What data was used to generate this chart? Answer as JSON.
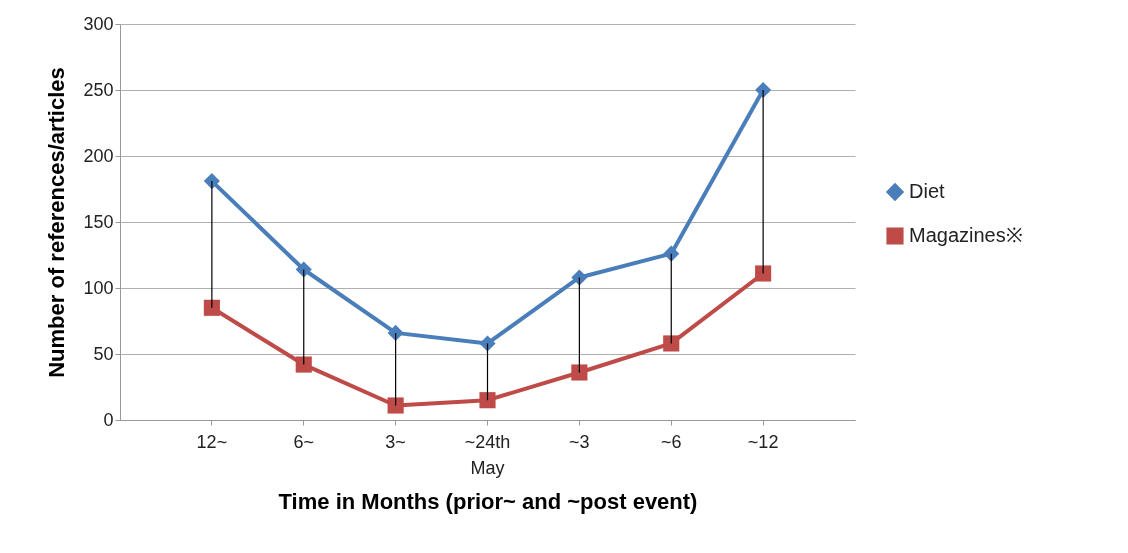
{
  "chart_data": {
    "type": "line",
    "xlabel": "Time in Months (prior~ and ~post event)",
    "ylabel": "Number of references/articles",
    "categories": [
      "12~",
      "6~",
      "3~",
      "~24th\nMay",
      "~3",
      "~6",
      "~12"
    ],
    "series": [
      {
        "name": "Diet",
        "color": "#4a7ebb",
        "marker": "diamond",
        "values": [
          181,
          114,
          66,
          58,
          108,
          126,
          250
        ],
        "errors": [
          [
            85,
            181
          ],
          [
            42,
            114
          ],
          [
            11,
            66
          ],
          [
            15,
            58
          ],
          [
            36,
            108
          ],
          [
            58,
            126
          ],
          [
            111,
            250
          ]
        ]
      },
      {
        "name": "Magazines※",
        "color": "#be4b48",
        "marker": "square",
        "values": [
          85,
          42,
          11,
          15,
          36,
          58,
          111
        ]
      }
    ],
    "ylim": [
      0,
      300
    ],
    "yticks": [
      0,
      50,
      100,
      150,
      200,
      250,
      300
    ],
    "grid": "y",
    "legend": "right",
    "line_style": "solid"
  }
}
